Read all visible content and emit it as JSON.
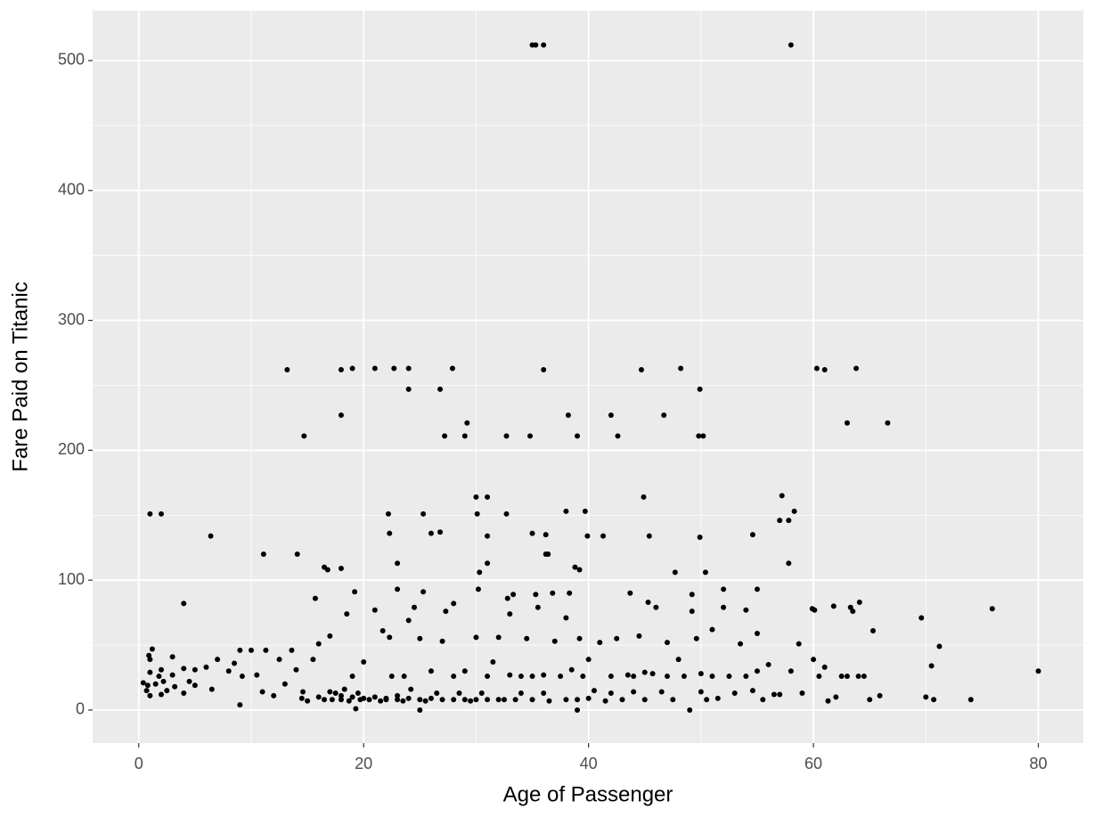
{
  "chart_data": {
    "type": "scatter",
    "x_label": "Age of Passenger",
    "y_label": "Fare Paid on Titanic",
    "color": "#000000",
    "xlim": [
      -4.1,
      84
    ],
    "ylim": [
      -25.4,
      538.4
    ],
    "xticks": [
      0,
      20,
      40,
      60,
      80
    ],
    "yticks": [
      0,
      100,
      200,
      300,
      400,
      500
    ],
    "grid": true,
    "x": [
      35,
      35.3,
      36,
      58,
      13.2,
      18,
      19,
      21,
      22.7,
      24,
      27.9,
      36,
      44.7,
      48.2,
      60.3,
      61,
      63.8,
      24,
      26.8,
      49.9,
      18,
      38.2,
      42,
      46.7,
      29.2,
      63,
      66.6,
      14.7,
      27.2,
      29,
      32.7,
      34.8,
      39,
      42.6,
      49.8,
      50.2,
      30,
      31,
      44.9,
      57.2,
      1,
      2,
      22.2,
      25.3,
      30.1,
      32.7,
      38,
      39.7,
      57.8,
      58.3,
      57,
      6.4,
      22.3,
      26,
      26.8,
      31,
      35,
      36.2,
      39.9,
      41.3,
      45.4,
      49.9,
      54.6,
      11.1,
      14.1,
      36.2,
      36.4,
      16.5,
      16.8,
      18,
      23,
      31,
      38.8,
      39.2,
      57.8,
      47.7,
      50.4,
      30.3,
      19.2,
      23,
      25.3,
      30.2,
      32.8,
      33.3,
      35.3,
      36.8,
      38.3,
      43.7,
      49.2,
      52,
      55,
      61.8,
      63.3,
      64.1,
      59.9,
      60.1,
      69.6,
      75.9,
      4,
      15.7,
      0.4,
      0.7,
      0.8,
      0.9,
      1,
      1,
      1,
      1.2,
      1.5,
      1.8,
      2,
      2,
      2.2,
      2.5,
      3,
      3,
      3.2,
      4,
      4,
      4.5,
      5,
      5,
      6,
      6.5,
      7,
      8,
      8.5,
      9,
      9,
      9.2,
      10,
      10.5,
      11,
      11.3,
      12,
      12.5,
      13,
      13.6,
      14,
      14.5,
      14.6,
      15,
      15.5,
      16,
      16,
      16.5,
      17,
      17,
      17.2,
      17.5,
      18,
      18,
      18.3,
      18.5,
      18.7,
      19,
      19,
      19.3,
      19.5,
      19.7,
      20,
      20,
      20.5,
      21,
      21,
      21.5,
      21.7,
      22,
      22,
      22.3,
      22.5,
      23,
      23,
      23.5,
      23.6,
      24,
      24,
      24.2,
      24.5,
      25,
      25,
      25,
      25.5,
      26,
      26,
      26.5,
      27,
      27,
      27.3,
      28,
      28,
      28,
      28.5,
      29,
      29,
      29.5,
      30,
      30,
      30.5,
      31,
      31,
      31.5,
      32,
      32,
      32.5,
      33,
      33,
      33.5,
      34,
      34,
      34.5,
      35,
      35,
      35.5,
      36,
      36,
      36.5,
      37,
      37.5,
      38,
      38,
      38.5,
      39,
      39,
      39.2,
      39.5,
      40,
      40,
      40.5,
      41,
      41.5,
      42,
      42,
      42.5,
      43,
      43.5,
      44,
      44,
      44.5,
      45,
      45,
      45.3,
      45.7,
      46,
      46.5,
      47,
      47,
      47.5,
      48,
      48.5,
      49,
      49.2,
      49.6,
      50,
      50,
      50.5,
      51,
      51,
      51.5,
      52,
      52.5,
      53,
      53.5,
      54,
      54,
      54.6,
      55,
      55,
      55.5,
      56,
      56.5,
      57,
      58,
      58.7,
      59,
      60,
      60.5,
      61,
      61.3,
      62,
      62.5,
      63,
      63.5,
      64,
      64.5,
      65,
      65.3,
      65.9,
      70,
      70.5,
      70.7,
      71.2,
      74,
      80
    ],
    "y": [
      512,
      512,
      512,
      512,
      262,
      262,
      263,
      263,
      263,
      263,
      263,
      262,
      262,
      263,
      263,
      262,
      263,
      247,
      247,
      247,
      227,
      227,
      227,
      227,
      221,
      221,
      221,
      211,
      211,
      211,
      211,
      211,
      211,
      211,
      211,
      211,
      164,
      164,
      164,
      165,
      151,
      151,
      151,
      151,
      151,
      151,
      153,
      153,
      146,
      153,
      146,
      134,
      136,
      136,
      137,
      134,
      136,
      135,
      134,
      134,
      134,
      133,
      135,
      120,
      120,
      120,
      120,
      110,
      108,
      109,
      113,
      113,
      110,
      108,
      113,
      106,
      106,
      106,
      91,
      93,
      91,
      93,
      86,
      89,
      89,
      90,
      90,
      90,
      89,
      93,
      93,
      80,
      79,
      83,
      78,
      77,
      71,
      78,
      82,
      86,
      21,
      15,
      19,
      42,
      11,
      29,
      39,
      47,
      20,
      26,
      12,
      31,
      22,
      15,
      41,
      27,
      18,
      32,
      13,
      22,
      31,
      19,
      33,
      16,
      39,
      30,
      36,
      46,
      4,
      26,
      46,
      27,
      14,
      46,
      11,
      39,
      20,
      46,
      31,
      9,
      14,
      7,
      39,
      51,
      10,
      8,
      57,
      14,
      8,
      13,
      8,
      11,
      16,
      74,
      7,
      10,
      26,
      1,
      13,
      8,
      9,
      37,
      8,
      77,
      10,
      7,
      61,
      9,
      8,
      56,
      26,
      11,
      8,
      7,
      26,
      9,
      69,
      16,
      79,
      8,
      0,
      55,
      7,
      9,
      30,
      13,
      8,
      53,
      76,
      8,
      26,
      82,
      13,
      8,
      30,
      7,
      8,
      56,
      13,
      26,
      8,
      37,
      8,
      56,
      8,
      27,
      74,
      8,
      26,
      13,
      55,
      8,
      26,
      79,
      13,
      27,
      7,
      53,
      26,
      8,
      71,
      31,
      8,
      0,
      55,
      26,
      9,
      39,
      15,
      52,
      7,
      26,
      13,
      55,
      8,
      27,
      26,
      14,
      57,
      8,
      29,
      83,
      28,
      79,
      14,
      52,
      26,
      8,
      39,
      26,
      0,
      76,
      55,
      14,
      28,
      8,
      26,
      62,
      9,
      79,
      26,
      13,
      51,
      26,
      77,
      15,
      30,
      59,
      8,
      35,
      12,
      12,
      30,
      51,
      13,
      39,
      26,
      33,
      7,
      10,
      26,
      26,
      76,
      26,
      26,
      8,
      61,
      11,
      10,
      34,
      8,
      49,
      8,
      30
    ]
  }
}
